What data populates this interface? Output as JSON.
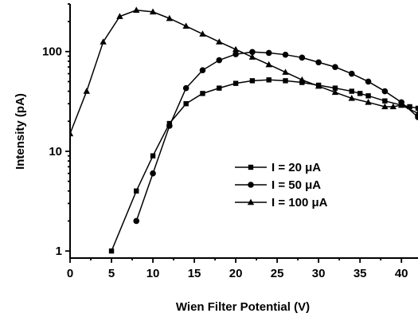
{
  "chart_data": {
    "type": "line",
    "xlabel": "Wien Filter Potential (V)",
    "ylabel": "Intensity (pA)",
    "xlim": [
      0,
      42
    ],
    "ylim": [
      0.85,
      300
    ],
    "yscale": "log",
    "xticks": [
      0,
      5,
      10,
      15,
      20,
      25,
      30,
      35,
      40
    ],
    "xtick_labels": [
      "0",
      "5",
      "10",
      "15",
      "20",
      "25",
      "30",
      "35",
      "40"
    ],
    "yticks": [
      1,
      10,
      100
    ],
    "ytick_labels": [
      "1",
      "10",
      "100"
    ],
    "grid": false,
    "legend_position": "center-right",
    "series": [
      {
        "name": "I = 20 μA",
        "marker": "square",
        "x": [
          5,
          8,
          10,
          12,
          14,
          16,
          18,
          20,
          22,
          24,
          26,
          28,
          30,
          32,
          34,
          35,
          36,
          38,
          40,
          41,
          42
        ],
        "y": [
          1.0,
          4.0,
          9.0,
          19,
          30,
          38,
          43,
          48,
          51,
          52,
          51,
          49,
          46,
          43,
          40,
          38,
          36,
          32,
          29,
          28,
          27
        ]
      },
      {
        "name": "I = 50 μA",
        "marker": "circle",
        "x": [
          8,
          10,
          12,
          14,
          16,
          18,
          20,
          22,
          24,
          26,
          28,
          30,
          32,
          34,
          36,
          38,
          40,
          42
        ],
        "y": [
          2.0,
          6.0,
          18,
          43,
          65,
          82,
          94,
          99,
          97,
          93,
          87,
          78,
          70,
          60,
          50,
          40,
          31,
          22
        ]
      },
      {
        "name": "I = 100 μA",
        "marker": "triangle",
        "x": [
          0,
          2,
          4,
          6,
          8,
          10,
          12,
          14,
          16,
          18,
          20,
          22,
          24,
          26,
          28,
          30,
          32,
          34,
          36,
          38,
          39,
          40,
          42
        ],
        "y": [
          15,
          40,
          125,
          225,
          260,
          250,
          215,
          180,
          150,
          125,
          105,
          88,
          74,
          62,
          52,
          45,
          39,
          34,
          31,
          28,
          28,
          29,
          24
        ]
      }
    ]
  }
}
